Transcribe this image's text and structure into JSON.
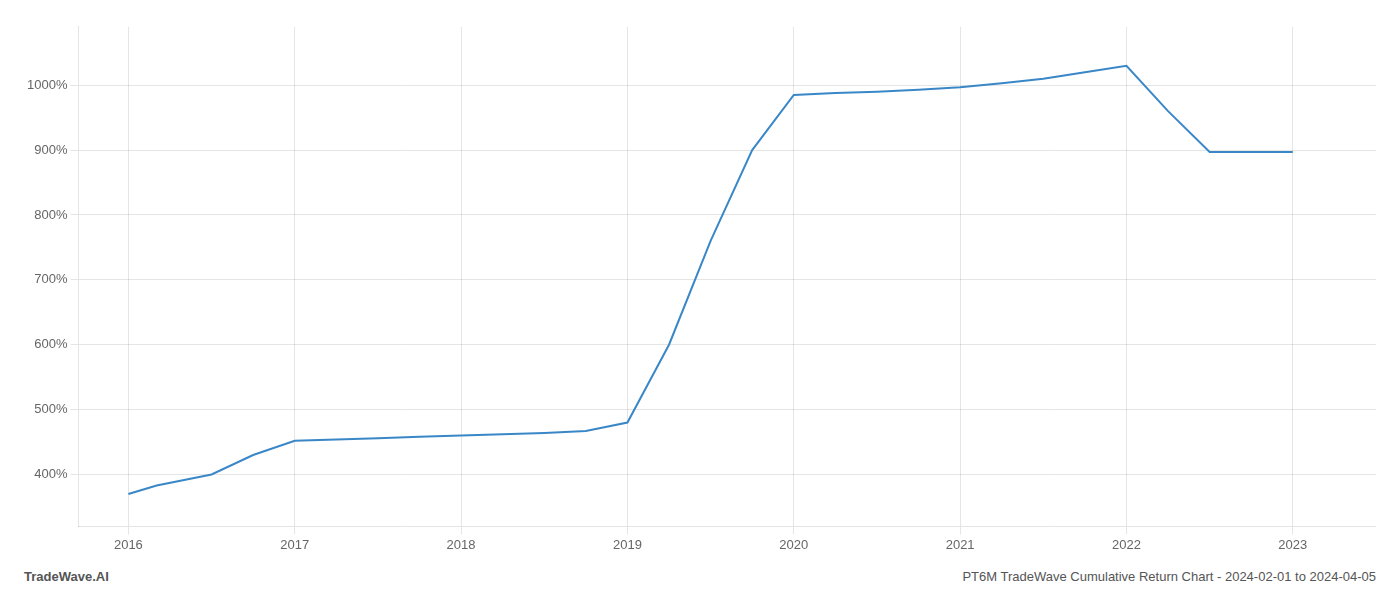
{
  "chart_data": {
    "type": "line",
    "x": [
      2016.0,
      2016.17,
      2016.5,
      2016.75,
      2017.0,
      2017.25,
      2017.5,
      2017.75,
      2018.0,
      2018.25,
      2018.5,
      2018.75,
      2019.0,
      2019.25,
      2019.5,
      2019.75,
      2020.0,
      2020.25,
      2020.5,
      2020.75,
      2021.0,
      2021.25,
      2021.5,
      2021.75,
      2022.0,
      2022.25,
      2022.5,
      2023.0
    ],
    "values": [
      370,
      383,
      400,
      430,
      452,
      454,
      456,
      458,
      460,
      462,
      464,
      467,
      480,
      600,
      760,
      900,
      985,
      988,
      990,
      993,
      997,
      1003,
      1010,
      1020,
      1030,
      960,
      897,
      897
    ],
    "color": "#3a87c8",
    "xlim": [
      2015.7,
      2023.5
    ],
    "xticks": [
      2016,
      2017,
      2018,
      2019,
      2020,
      2021,
      2022,
      2023
    ],
    "ylim": [
      320,
      1090
    ],
    "yticks": [
      {
        "value": 400,
        "label": "400%"
      },
      {
        "value": 500,
        "label": "500%"
      },
      {
        "value": 600,
        "label": "600%"
      },
      {
        "value": 700,
        "label": "700%"
      },
      {
        "value": 800,
        "label": "800%"
      },
      {
        "value": 900,
        "label": "900%"
      },
      {
        "value": 1000,
        "label": "1000%"
      }
    ],
    "grid": true,
    "annotations": [
      "TradeWave.AI",
      "PT6M TradeWave Cumulative Return Chart - 2024-02-01 to 2024-04-05"
    ]
  }
}
